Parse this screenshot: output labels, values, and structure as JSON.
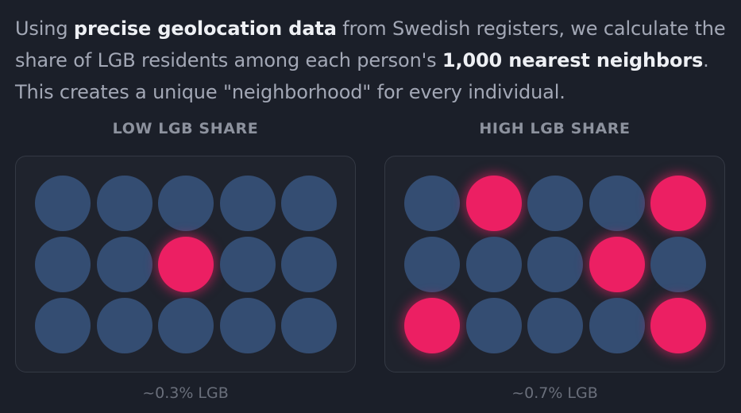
{
  "intro": {
    "part1": "Using ",
    "bold1": "precise geolocation data",
    "part2": " from Swedish registers, we calculate the share of LGB residents among each person's ",
    "bold2": "1,000 nearest neighbors",
    "part3": ". This creates a unique \"neighborhood\" for every individual."
  },
  "colors": {
    "resident": "#344d72",
    "lgb_resident": "#ec1f63"
  },
  "panels": [
    {
      "title": "LOW LGB SHARE",
      "caption": "~0.3% LGB",
      "grid": [
        [
          0,
          0,
          0,
          0,
          0
        ],
        [
          0,
          0,
          1,
          0,
          0
        ],
        [
          0,
          0,
          0,
          0,
          0
        ]
      ]
    },
    {
      "title": "HIGH LGB SHARE",
      "caption": "~0.7% LGB",
      "grid": [
        [
          0,
          1,
          0,
          0,
          1
        ],
        [
          0,
          0,
          0,
          1,
          0
        ],
        [
          1,
          0,
          0,
          0,
          1
        ]
      ]
    }
  ]
}
